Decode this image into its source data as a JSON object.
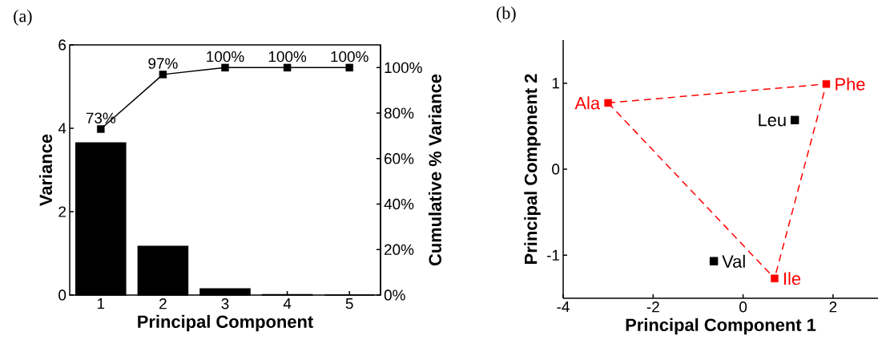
{
  "chart_data": [
    {
      "type": "bar",
      "title": "(a)",
      "xlabel": "Principal Component",
      "ylabel": "Variance",
      "y2label": "Cumulative % Variance",
      "categories": [
        "1",
        "2",
        "3",
        "4",
        "5"
      ],
      "series": [
        {
          "type": "bar",
          "color": "#000000",
          "values": [
            3.65,
            1.17,
            0.15,
            0.01,
            0
          ]
        },
        {
          "type": "line",
          "axis": "y2",
          "color": "#000000",
          "marker": "square",
          "values": [
            73,
            97,
            100,
            100,
            100
          ],
          "value_labels": [
            "73%",
            "97%",
            "100%",
            "100%",
            "100%"
          ]
        }
      ],
      "ylim": [
        0,
        6
      ],
      "yticks": [
        0,
        2,
        4,
        6
      ],
      "y2lim": [
        0,
        110
      ],
      "y2ticks": [
        {
          "value": 0,
          "label": "0%"
        },
        {
          "value": 20,
          "label": "20%"
        },
        {
          "value": 40,
          "label": "40%"
        },
        {
          "value": 60,
          "label": "60%"
        },
        {
          "value": 80,
          "label": "80%"
        },
        {
          "value": 100,
          "label": "100%"
        }
      ]
    },
    {
      "type": "scatter",
      "title": "(b)",
      "xlabel": "Principal Component 1",
      "ylabel": "Principal Component 2",
      "series": [
        {
          "type": "line",
          "color": "#ff0000",
          "line_style": "dashed",
          "marker": "square",
          "x": [
            -3.0,
            1.85,
            0.7
          ],
          "values": [
            0.77,
            0.99,
            -1.27
          ],
          "value_labels": [
            "Ala",
            "Phe",
            "Ile"
          ]
        },
        {
          "type": "line",
          "color": "#ff0000",
          "line_style": "dashed",
          "marker": "none",
          "x": [
            -3.0,
            0.7
          ],
          "values": [
            0.77,
            -1.27
          ]
        },
        {
          "type": "scatter",
          "color": "#000000",
          "marker": "square",
          "x": [
            1.15,
            -0.65
          ],
          "values": [
            0.57,
            -1.07
          ],
          "value_labels": [
            "Leu",
            "Val"
          ]
        }
      ],
      "xlim": [
        -4,
        3
      ],
      "ylim": [
        -1.5,
        1.5
      ],
      "xticks": [
        -4,
        -2,
        0,
        2
      ],
      "yticks": [
        -1,
        0,
        1
      ]
    }
  ]
}
